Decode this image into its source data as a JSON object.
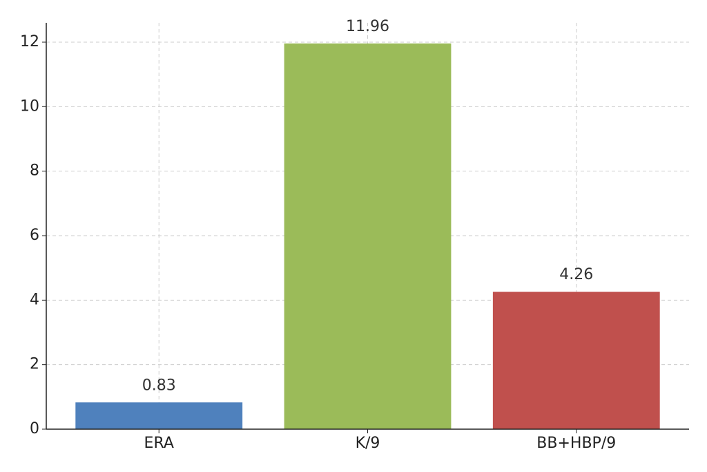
{
  "chart_data": {
    "type": "bar",
    "categories": [
      "ERA",
      "K/9",
      "BB+HBP/9"
    ],
    "values": [
      0.83,
      11.96,
      4.26
    ],
    "colors": [
      "#4f81bd",
      "#9bbb59",
      "#c0504d"
    ],
    "ylim": [
      0,
      12.6
    ],
    "yticks": [
      0,
      2,
      4,
      6,
      8,
      10,
      12
    ],
    "grid": true
  }
}
